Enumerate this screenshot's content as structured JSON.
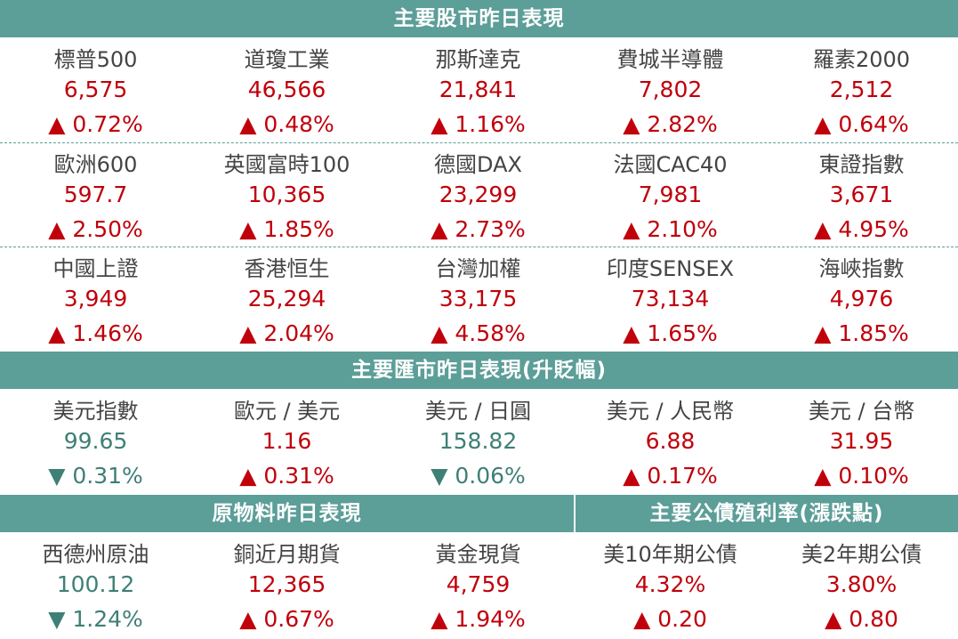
{
  "stock_title": "主要股市昨日表現",
  "stocks": [
    [
      {
        "name": "標普500",
        "value": "6,575",
        "change": "▲ 0.72%",
        "dir": "up"
      },
      {
        "name": "道瓊工業",
        "value": "46,566",
        "change": "▲ 0.48%",
        "dir": "up"
      },
      {
        "name": "那斯達克",
        "value": "21,841",
        "change": "▲ 1.16%",
        "dir": "up"
      },
      {
        "name": "費城半導體",
        "value": "7,802",
        "change": "▲ 2.82%",
        "dir": "up"
      },
      {
        "name": "羅素2000",
        "value": "2,512",
        "change": "▲ 0.64%",
        "dir": "up"
      }
    ],
    [
      {
        "name": "歐洲600",
        "value": "597.7",
        "change": "▲ 2.50%",
        "dir": "up"
      },
      {
        "name": "英國富時100",
        "value": "10,365",
        "change": "▲ 1.85%",
        "dir": "up"
      },
      {
        "name": "德國DAX",
        "value": "23,299",
        "change": "▲ 2.73%",
        "dir": "up"
      },
      {
        "name": "法國CAC40",
        "value": "7,981",
        "change": "▲ 2.10%",
        "dir": "up"
      },
      {
        "name": "東證指數",
        "value": "3,671",
        "change": "▲ 4.95%",
        "dir": "up"
      }
    ],
    [
      {
        "name": "中國上證",
        "value": "3,949",
        "change": "▲ 1.46%",
        "dir": "up"
      },
      {
        "name": "香港恒生",
        "value": "25,294",
        "change": "▲ 2.04%",
        "dir": "up"
      },
      {
        "name": "台灣加權",
        "value": "33,175",
        "change": "▲ 4.58%",
        "dir": "up"
      },
      {
        "name": "印度SENSEX",
        "value": "73,134",
        "change": "▲ 1.65%",
        "dir": "up"
      },
      {
        "name": "海峽指數",
        "value": "4,976",
        "change": "▲ 1.85%",
        "dir": "up"
      }
    ]
  ],
  "fx_title": "主要匯市昨日表現(升貶幅)",
  "fx": [
    {
      "name": "美元指數",
      "value": "99.65",
      "change": "▼ 0.31%",
      "dir": "down"
    },
    {
      "name": "歐元 / 美元",
      "value": "1.16",
      "change": "▲ 0.31%",
      "dir": "up"
    },
    {
      "name": "美元 / 日圓",
      "value": "158.82",
      "change": "▼ 0.06%",
      "dir": "down"
    },
    {
      "name": "美元 / 人民幣",
      "value": "6.88",
      "change": "▲ 0.17%",
      "dir": "up"
    },
    {
      "name": "美元 / 台幣",
      "value": "31.95",
      "change": "▲ 0.10%",
      "dir": "up"
    }
  ],
  "commodity_title": "原物料昨日表現",
  "bond_title": "主要公債殖利率(漲跌點)",
  "bottom": [
    {
      "name": "西德州原油",
      "value": "100.12",
      "change": "▼ 1.24%",
      "dir": "down"
    },
    {
      "name": "銅近月期貨",
      "value": "12,365",
      "change": "▲ 0.67%",
      "dir": "up"
    },
    {
      "name": "黃金現貨",
      "value": "4,759",
      "change": "▲ 1.94%",
      "dir": "up"
    },
    {
      "name": "美10年期公債",
      "value": "4.32%",
      "change": "▲ 0.20",
      "dir": "up"
    },
    {
      "name": "美2年期公債",
      "value": "3.80%",
      "change": "▲ 0.80",
      "dir": "up"
    }
  ],
  "colors": {
    "header_bg": "#5c9e98",
    "up": "#c0000b",
    "down": "#3e7f76"
  }
}
